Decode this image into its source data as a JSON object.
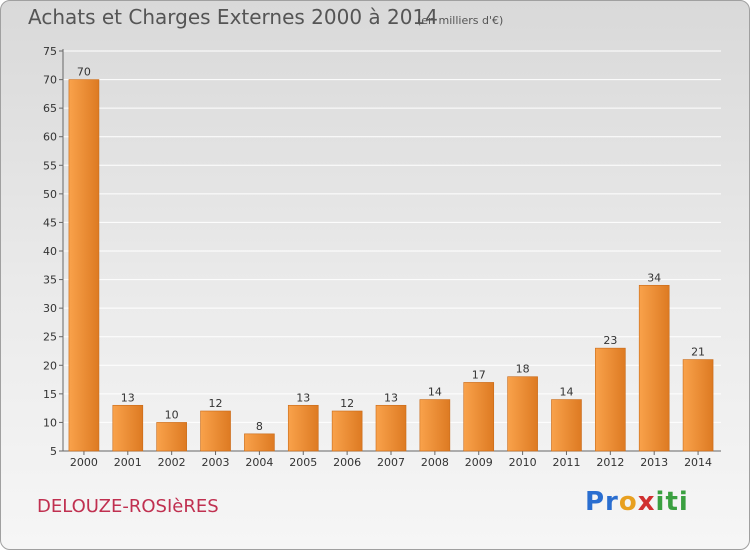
{
  "header": {
    "title": "Achats et Charges Externes 2000 à 2014",
    "subtitle": "(en milliers d'€)"
  },
  "footer": {
    "commune": "DELOUZE-ROSIèRES",
    "logo_text": "Proxiti"
  },
  "colors": {
    "bar_light": "#f9a24b",
    "bar_dark": "#dd7a22",
    "bar_edge": "#c86a18",
    "grid": "#ffffff",
    "axis": "#666666"
  },
  "chart_data": {
    "type": "bar",
    "categories": [
      "2000",
      "2001",
      "2002",
      "2003",
      "2004",
      "2005",
      "2006",
      "2007",
      "2008",
      "2009",
      "2010",
      "2011",
      "2012",
      "2013",
      "2014"
    ],
    "values": [
      70,
      13,
      10,
      12,
      8,
      13,
      12,
      13,
      14,
      17,
      18,
      14,
      23,
      34,
      21
    ],
    "title": "Achats et Charges Externes 2000 à 2014",
    "subtitle": "(en milliers d'€)",
    "ylim": [
      5,
      75
    ],
    "yticks": [
      5,
      10,
      15,
      20,
      25,
      30,
      35,
      40,
      45,
      50,
      55,
      60,
      65,
      70,
      75
    ],
    "grid": true,
    "data_labels": true
  }
}
